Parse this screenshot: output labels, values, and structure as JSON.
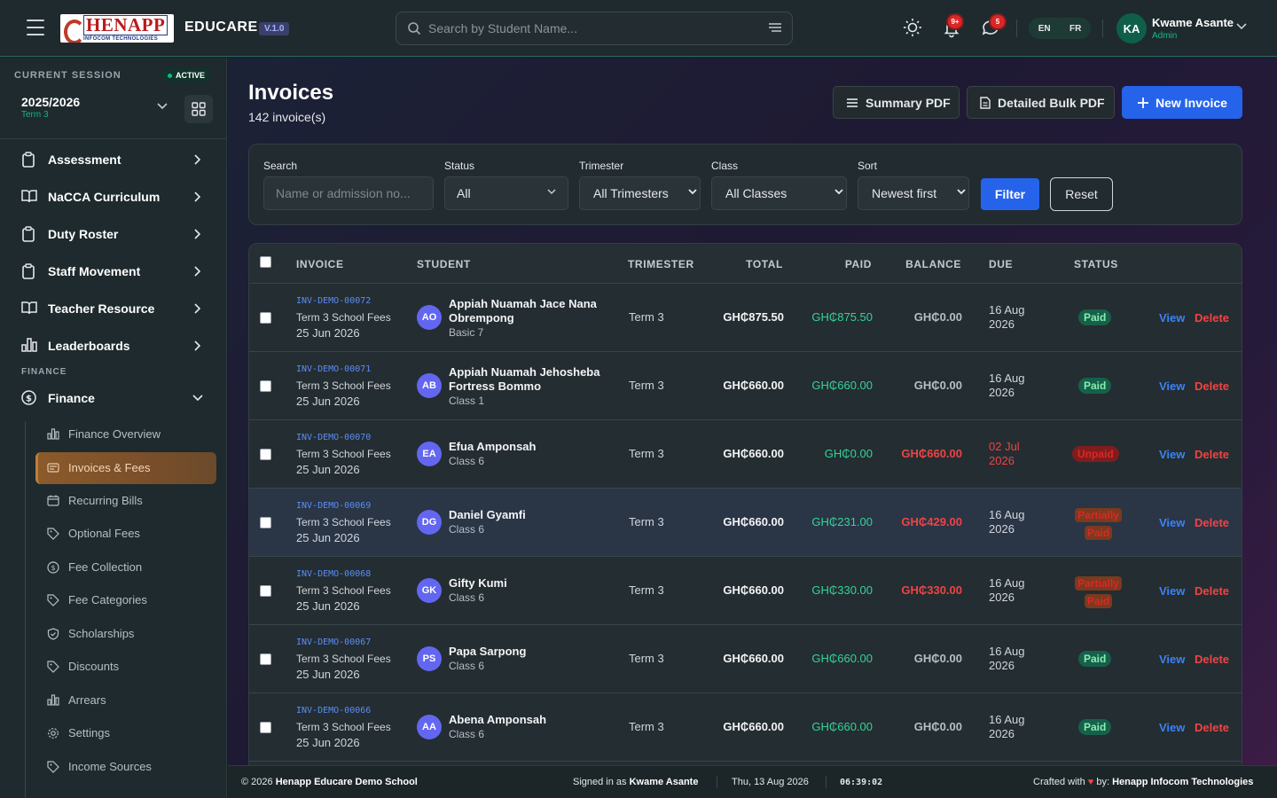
{
  "topbar": {
    "logo_main": "HENAPP",
    "logo_sub": "INFOCOM TECHNOLOGIES",
    "app_name": "EDUCARE",
    "version": "V.1.0",
    "search_placeholder": "Search by Student Name...",
    "notifications_badge": "9+",
    "messages_badge": "5",
    "lang_en": "EN",
    "lang_fr": "FR",
    "user_initials": "KA",
    "user_name": "Kwame Asante",
    "user_role": "Admin"
  },
  "sidebar": {
    "session_label": "CURRENT SESSION",
    "session_status": "ACTIVE",
    "session_year": "2025/2026",
    "session_term": "Term 3",
    "nav": [
      {
        "label": "Assessment"
      },
      {
        "label": "NaCCA Curriculum"
      },
      {
        "label": "Duty Roster"
      },
      {
        "label": "Staff Movement"
      },
      {
        "label": "Teacher Resource"
      },
      {
        "label": "Leaderboards"
      }
    ],
    "section_label": "FINANCE",
    "finance_label": "Finance",
    "sub_items": [
      {
        "label": "Finance Overview",
        "icon": "bar-chart-icon"
      },
      {
        "label": "Invoices & Fees",
        "icon": "receipt-icon"
      },
      {
        "label": "Recurring Bills",
        "icon": "calendar-icon"
      },
      {
        "label": "Optional Fees",
        "icon": "tag-icon"
      },
      {
        "label": "Fee Collection",
        "icon": "coin-icon"
      },
      {
        "label": "Fee Categories",
        "icon": "tag-icon"
      },
      {
        "label": "Scholarships",
        "icon": "shield-icon"
      },
      {
        "label": "Discounts",
        "icon": "tag-icon"
      },
      {
        "label": "Arrears",
        "icon": "bar-chart-icon"
      },
      {
        "label": "Settings",
        "icon": "gear-icon"
      },
      {
        "label": "Income Sources",
        "icon": "tag-icon"
      }
    ]
  },
  "page": {
    "title": "Invoices",
    "count": "142 invoice(s)",
    "summary_pdf": "Summary PDF",
    "detailed_pdf": "Detailed Bulk PDF",
    "new_invoice": "New Invoice"
  },
  "filters": {
    "search_label": "Search",
    "search_placeholder": "Name or admission no...",
    "status_label": "Status",
    "status_value": "All",
    "trimester_label": "Trimester",
    "trimester_value": "All Trimesters",
    "class_label": "Class",
    "class_value": "All Classes",
    "sort_label": "Sort",
    "sort_value": "Newest first",
    "filter_btn": "Filter",
    "reset_btn": "Reset"
  },
  "table": {
    "headers": {
      "invoice": "INVOICE",
      "student": "STUDENT",
      "trimester": "TRIMESTER",
      "total": "TOTAL",
      "paid": "PAID",
      "balance": "BALANCE",
      "due": "DUE",
      "status": "STATUS"
    },
    "view_label": "View",
    "delete_label": "Delete",
    "rows": [
      {
        "inv": "INV-DEMO-00072",
        "desc": "Term 3 School Fees",
        "date": "25 Jun 2026",
        "initials": "AO",
        "name1": "Appiah Nuamah Jace Nana",
        "name2": "Obrempong",
        "class": "Basic 7",
        "term": "Term 3",
        "total": "GH₵875.50",
        "paid": "GH₵875.50",
        "balance": "GH₵0.00",
        "due1": "16 Aug",
        "due2": "2026",
        "status": "Paid"
      },
      {
        "inv": "INV-DEMO-00071",
        "desc": "Term 3 School Fees",
        "date": "25 Jun 2026",
        "initials": "AB",
        "name1": "Appiah Nuamah Jehosheba",
        "name2": "Fortress Bommo",
        "class": "Class 1",
        "term": "Term 3",
        "total": "GH₵660.00",
        "paid": "GH₵660.00",
        "balance": "GH₵0.00",
        "due1": "16 Aug",
        "due2": "2026",
        "status": "Paid"
      },
      {
        "inv": "INV-DEMO-00070",
        "desc": "Term 3 School Fees",
        "date": "25 Jun 2026",
        "initials": "EA",
        "name1": "Efua Amponsah",
        "name2": "",
        "class": "Class 6",
        "term": "Term 3",
        "total": "GH₵660.00",
        "paid": "GH₵0.00",
        "balance": "GH₵660.00",
        "due1": "02 Jul",
        "due2": "2026",
        "status": "Unpaid"
      },
      {
        "inv": "INV-DEMO-00069",
        "desc": "Term 3 School Fees",
        "date": "25 Jun 2026",
        "initials": "DG",
        "name1": "Daniel Gyamfi",
        "name2": "",
        "class": "Class 6",
        "term": "Term 3",
        "total": "GH₵660.00",
        "paid": "GH₵231.00",
        "balance": "GH₵429.00",
        "due1": "16 Aug",
        "due2": "2026",
        "status1": "Partially",
        "status2": "Paid"
      },
      {
        "inv": "INV-DEMO-00068",
        "desc": "Term 3 School Fees",
        "date": "25 Jun 2026",
        "initials": "GK",
        "name1": "Gifty Kumi",
        "name2": "",
        "class": "Class 6",
        "term": "Term 3",
        "total": "GH₵660.00",
        "paid": "GH₵330.00",
        "balance": "GH₵330.00",
        "due1": "16 Aug",
        "due2": "2026",
        "status1": "Partially",
        "status2": "Paid"
      },
      {
        "inv": "INV-DEMO-00067",
        "desc": "Term 3 School Fees",
        "date": "25 Jun 2026",
        "initials": "PS",
        "name1": "Papa Sarpong",
        "name2": "",
        "class": "Class 6",
        "term": "Term 3",
        "total": "GH₵660.00",
        "paid": "GH₵660.00",
        "balance": "GH₵0.00",
        "due1": "16 Aug",
        "due2": "2026",
        "status": "Paid"
      },
      {
        "inv": "INV-DEMO-00066",
        "desc": "Term 3 School Fees",
        "date": "25 Jun 2026",
        "initials": "AA",
        "name1": "Abena Amponsah",
        "name2": "",
        "class": "Class 6",
        "term": "Term 3",
        "total": "GH₵660.00",
        "paid": "GH₵660.00",
        "balance": "GH₵0.00",
        "due1": "16 Aug",
        "due2": "2026",
        "status": "Paid"
      }
    ]
  },
  "footer": {
    "copyright_prefix": "© 2026",
    "school": "Henapp Educare Demo School",
    "signed_prefix": "Signed in as",
    "signed_user": "Kwame Asante",
    "date": "Thu, 13 Aug 2026",
    "time": "06:39:02",
    "crafted_prefix": "Crafted with",
    "heart": "♥",
    "crafted_by": "by:",
    "company": "Henapp Infocom Technologies"
  },
  "colors": {
    "accent_blue": "#2563eb",
    "paid_green": "#34d399",
    "due_red": "#ef4444",
    "active_nav": "#8a5a2a"
  }
}
